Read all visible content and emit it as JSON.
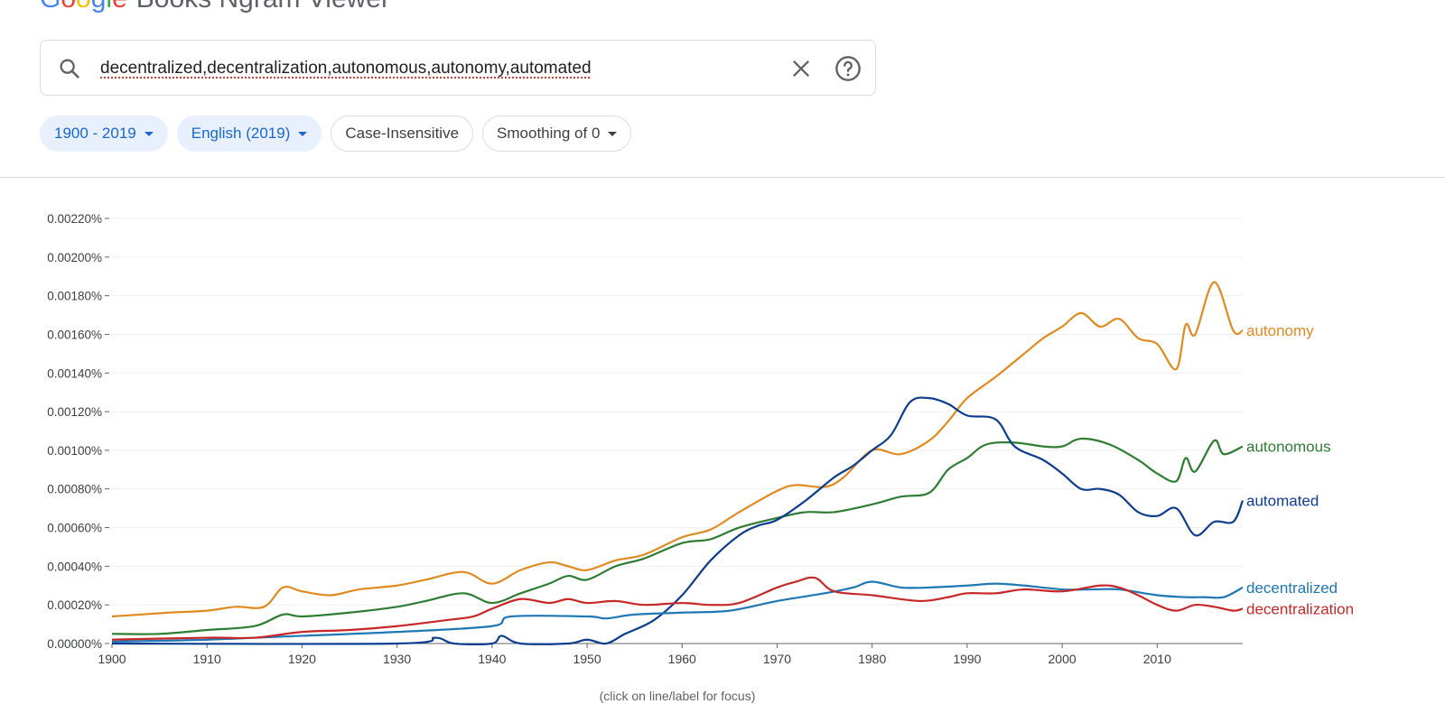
{
  "header": {
    "logo_word": "Google",
    "title": "Books Ngram Viewer"
  },
  "search": {
    "query": "decentralized,decentralization,autonomous,autonomy,automated",
    "clear_icon": "close-icon",
    "help_icon": "help-circle-icon"
  },
  "filters": {
    "year_range": "1900 - 2019",
    "corpus": "English (2019)",
    "case": "Case-Insensitive",
    "smoothing": "Smoothing of 0"
  },
  "footer_hint": "(click on line/label for focus)",
  "chart_data": {
    "type": "line",
    "xlim": [
      1900,
      2019
    ],
    "ylim": [
      0,
      0.0022
    ],
    "x_ticks": [
      1900,
      1910,
      1920,
      1930,
      1940,
      1950,
      1960,
      1970,
      1980,
      1990,
      2000,
      2010
    ],
    "y_ticks": [
      0,
      0.0002,
      0.0004,
      0.0006,
      0.0008,
      0.001,
      0.0012,
      0.0014,
      0.0016,
      0.0018,
      0.002,
      0.0022
    ],
    "y_tick_labels": [
      "0.00000%",
      "0.00020%",
      "0.00040%",
      "0.00060%",
      "0.00080%",
      "0.00100%",
      "0.00120%",
      "0.00140%",
      "0.00160%",
      "0.00180%",
      "0.00200%",
      "0.00220%"
    ],
    "grid": true,
    "series": [
      {
        "name": "autonomy",
        "color": "#e08a20",
        "points": [
          [
            1900,
            0.00014
          ],
          [
            1903,
            0.00015
          ],
          [
            1906,
            0.00016
          ],
          [
            1910,
            0.00017
          ],
          [
            1913,
            0.00019
          ],
          [
            1916,
            0.00019
          ],
          [
            1918,
            0.00029
          ],
          [
            1920,
            0.00027
          ],
          [
            1923,
            0.00025
          ],
          [
            1926,
            0.00028
          ],
          [
            1930,
            0.0003
          ],
          [
            1933,
            0.00033
          ],
          [
            1937,
            0.00037
          ],
          [
            1940,
            0.00031
          ],
          [
            1943,
            0.00038
          ],
          [
            1946,
            0.00042
          ],
          [
            1948,
            0.0004
          ],
          [
            1950,
            0.00038
          ],
          [
            1953,
            0.00043
          ],
          [
            1956,
            0.00046
          ],
          [
            1960,
            0.00055
          ],
          [
            1963,
            0.00059
          ],
          [
            1966,
            0.00068
          ],
          [
            1970,
            0.00079
          ],
          [
            1972,
            0.00082
          ],
          [
            1975,
            0.00081
          ],
          [
            1977,
            0.00086
          ],
          [
            1980,
            0.001
          ],
          [
            1983,
            0.00098
          ],
          [
            1986,
            0.00105
          ],
          [
            1988,
            0.00115
          ],
          [
            1990,
            0.00127
          ],
          [
            1993,
            0.00138
          ],
          [
            1996,
            0.0015
          ],
          [
            1998,
            0.00158
          ],
          [
            2000,
            0.00164
          ],
          [
            2002,
            0.00171
          ],
          [
            2004,
            0.00164
          ],
          [
            2006,
            0.00168
          ],
          [
            2008,
            0.00158
          ],
          [
            2010,
            0.00155
          ],
          [
            2012,
            0.00142
          ],
          [
            2013,
            0.00165
          ],
          [
            2014,
            0.0016
          ],
          [
            2016,
            0.00187
          ],
          [
            2018,
            0.00162
          ],
          [
            2019,
            0.00162
          ]
        ]
      },
      {
        "name": "autonomous",
        "color": "#2e7d32",
        "points": [
          [
            1900,
            5e-05
          ],
          [
            1905,
            5e-05
          ],
          [
            1910,
            7e-05
          ],
          [
            1915,
            9e-05
          ],
          [
            1918,
            0.00015
          ],
          [
            1920,
            0.00014
          ],
          [
            1925,
            0.00016
          ],
          [
            1930,
            0.00019
          ],
          [
            1933,
            0.00022
          ],
          [
            1937,
            0.00026
          ],
          [
            1940,
            0.00021
          ],
          [
            1943,
            0.00026
          ],
          [
            1946,
            0.00031
          ],
          [
            1948,
            0.00035
          ],
          [
            1950,
            0.00033
          ],
          [
            1953,
            0.0004
          ],
          [
            1956,
            0.00044
          ],
          [
            1960,
            0.00052
          ],
          [
            1963,
            0.00054
          ],
          [
            1966,
            0.0006
          ],
          [
            1970,
            0.00065
          ],
          [
            1973,
            0.00068
          ],
          [
            1976,
            0.00068
          ],
          [
            1980,
            0.00072
          ],
          [
            1983,
            0.00076
          ],
          [
            1986,
            0.00078
          ],
          [
            1988,
            0.0009
          ],
          [
            1990,
            0.00096
          ],
          [
            1992,
            0.00103
          ],
          [
            1995,
            0.00104
          ],
          [
            1998,
            0.00102
          ],
          [
            2000,
            0.00102
          ],
          [
            2002,
            0.00106
          ],
          [
            2005,
            0.00103
          ],
          [
            2008,
            0.00095
          ],
          [
            2010,
            0.00088
          ],
          [
            2012,
            0.00084
          ],
          [
            2013,
            0.00096
          ],
          [
            2014,
            0.00089
          ],
          [
            2016,
            0.00105
          ],
          [
            2017,
            0.00098
          ],
          [
            2019,
            0.00102
          ]
        ]
      },
      {
        "name": "automated",
        "color": "#0d3d8f",
        "points": [
          [
            1900,
            0.0
          ],
          [
            1930,
            0.0
          ],
          [
            1934,
            3e-05
          ],
          [
            1936,
            0.0
          ],
          [
            1940,
            0.0
          ],
          [
            1941,
            4e-05
          ],
          [
            1943,
            0.0
          ],
          [
            1948,
            0.0
          ],
          [
            1950,
            2e-05
          ],
          [
            1952,
            0.0
          ],
          [
            1954,
            5e-05
          ],
          [
            1957,
            0.00012
          ],
          [
            1960,
            0.00025
          ],
          [
            1963,
            0.00043
          ],
          [
            1966,
            0.00056
          ],
          [
            1968,
            0.00061
          ],
          [
            1970,
            0.00064
          ],
          [
            1973,
            0.00074
          ],
          [
            1976,
            0.00086
          ],
          [
            1978,
            0.00092
          ],
          [
            1980,
            0.001
          ],
          [
            1982,
            0.00108
          ],
          [
            1984,
            0.00125
          ],
          [
            1986,
            0.00127
          ],
          [
            1988,
            0.00124
          ],
          [
            1990,
            0.00118
          ],
          [
            1993,
            0.00116
          ],
          [
            1995,
            0.00102
          ],
          [
            1998,
            0.00095
          ],
          [
            2000,
            0.00088
          ],
          [
            2002,
            0.0008
          ],
          [
            2004,
            0.0008
          ],
          [
            2006,
            0.00077
          ],
          [
            2008,
            0.00068
          ],
          [
            2010,
            0.00066
          ],
          [
            2012,
            0.0007
          ],
          [
            2014,
            0.00056
          ],
          [
            2016,
            0.00063
          ],
          [
            2018,
            0.00063
          ],
          [
            2019,
            0.00074
          ]
        ]
      },
      {
        "name": "decentralized",
        "color": "#1f77b4",
        "points": [
          [
            1900,
            1e-05
          ],
          [
            1910,
            2e-05
          ],
          [
            1920,
            4e-05
          ],
          [
            1930,
            6e-05
          ],
          [
            1940,
            9e-05
          ],
          [
            1942,
            0.00014
          ],
          [
            1950,
            0.00014
          ],
          [
            1952,
            0.00013
          ],
          [
            1955,
            0.00015
          ],
          [
            1960,
            0.00016
          ],
          [
            1965,
            0.00017
          ],
          [
            1970,
            0.00022
          ],
          [
            1975,
            0.00026
          ],
          [
            1978,
            0.00029
          ],
          [
            1980,
            0.00032
          ],
          [
            1983,
            0.00029
          ],
          [
            1986,
            0.00029
          ],
          [
            1990,
            0.0003
          ],
          [
            1993,
            0.00031
          ],
          [
            1996,
            0.0003
          ],
          [
            2000,
            0.00028
          ],
          [
            2003,
            0.00028
          ],
          [
            2006,
            0.00028
          ],
          [
            2010,
            0.00025
          ],
          [
            2013,
            0.00024
          ],
          [
            2015,
            0.00024
          ],
          [
            2017,
            0.00024
          ],
          [
            2019,
            0.00029
          ]
        ]
      },
      {
        "name": "decentralization",
        "color": "#c62828",
        "points": [
          [
            1900,
            2e-05
          ],
          [
            1910,
            3e-05
          ],
          [
            1915,
            3e-05
          ],
          [
            1920,
            6e-05
          ],
          [
            1925,
            7e-05
          ],
          [
            1930,
            9e-05
          ],
          [
            1935,
            0.00012
          ],
          [
            1938,
            0.00014
          ],
          [
            1940,
            0.00018
          ],
          [
            1943,
            0.00023
          ],
          [
            1946,
            0.00021
          ],
          [
            1948,
            0.00023
          ],
          [
            1950,
            0.00021
          ],
          [
            1953,
            0.00022
          ],
          [
            1956,
            0.0002
          ],
          [
            1960,
            0.00021
          ],
          [
            1963,
            0.0002
          ],
          [
            1966,
            0.00021
          ],
          [
            1970,
            0.00029
          ],
          [
            1972,
            0.00032
          ],
          [
            1974,
            0.00034
          ],
          [
            1976,
            0.00027
          ],
          [
            1980,
            0.00025
          ],
          [
            1985,
            0.00022
          ],
          [
            1988,
            0.00024
          ],
          [
            1990,
            0.00026
          ],
          [
            1993,
            0.00026
          ],
          [
            1996,
            0.00028
          ],
          [
            2000,
            0.00027
          ],
          [
            2004,
            0.0003
          ],
          [
            2006,
            0.00029
          ],
          [
            2008,
            0.00025
          ],
          [
            2010,
            0.0002
          ],
          [
            2012,
            0.00017
          ],
          [
            2014,
            0.0002
          ],
          [
            2016,
            0.00019
          ],
          [
            2018,
            0.00017
          ],
          [
            2019,
            0.00018
          ]
        ]
      }
    ]
  }
}
